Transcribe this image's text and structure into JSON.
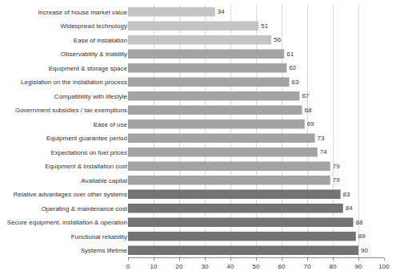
{
  "chart_data": {
    "type": "bar",
    "orientation": "horizontal",
    "categories": [
      "Increase of house market value",
      "Widespread technology",
      "Ease of installation",
      "Observability & triability",
      "Equipment & storage space",
      "Legislation on the installation process",
      "Compatibility with lifestyle",
      "Government subsidies / tax exemptions",
      "Ease of use",
      "Equipment guarantee period",
      "Expectations on fuel prices",
      "Equipment & installation cost",
      "Available capital",
      "Relative advantages over other systems",
      "Operating & maintenance cost",
      "Secure equipment, installation & operation",
      "Functional reliability",
      "Systems lifetime"
    ],
    "values": [
      34,
      51,
      56,
      61,
      62,
      63,
      67,
      68,
      69,
      73,
      74,
      79,
      79,
      83,
      84,
      88,
      89,
      90
    ],
    "colors": [
      "#c4c4c4",
      "#c4c4c4",
      "#c4c4c4",
      "#a3a3a3",
      "#a3a3a3",
      "#a3a3a3",
      "#a3a3a3",
      "#a3a3a3",
      "#a3a3a3",
      "#a3a3a3",
      "#a3a3a3",
      "#a3a3a3",
      "#a3a3a3",
      "#727272",
      "#727272",
      "#727272",
      "#727272",
      "#727272"
    ],
    "xlim": [
      0,
      100
    ],
    "xticks": [
      0,
      10,
      20,
      30,
      40,
      50,
      60,
      70,
      80,
      90,
      100
    ],
    "grid": true,
    "data_labels": true
  }
}
